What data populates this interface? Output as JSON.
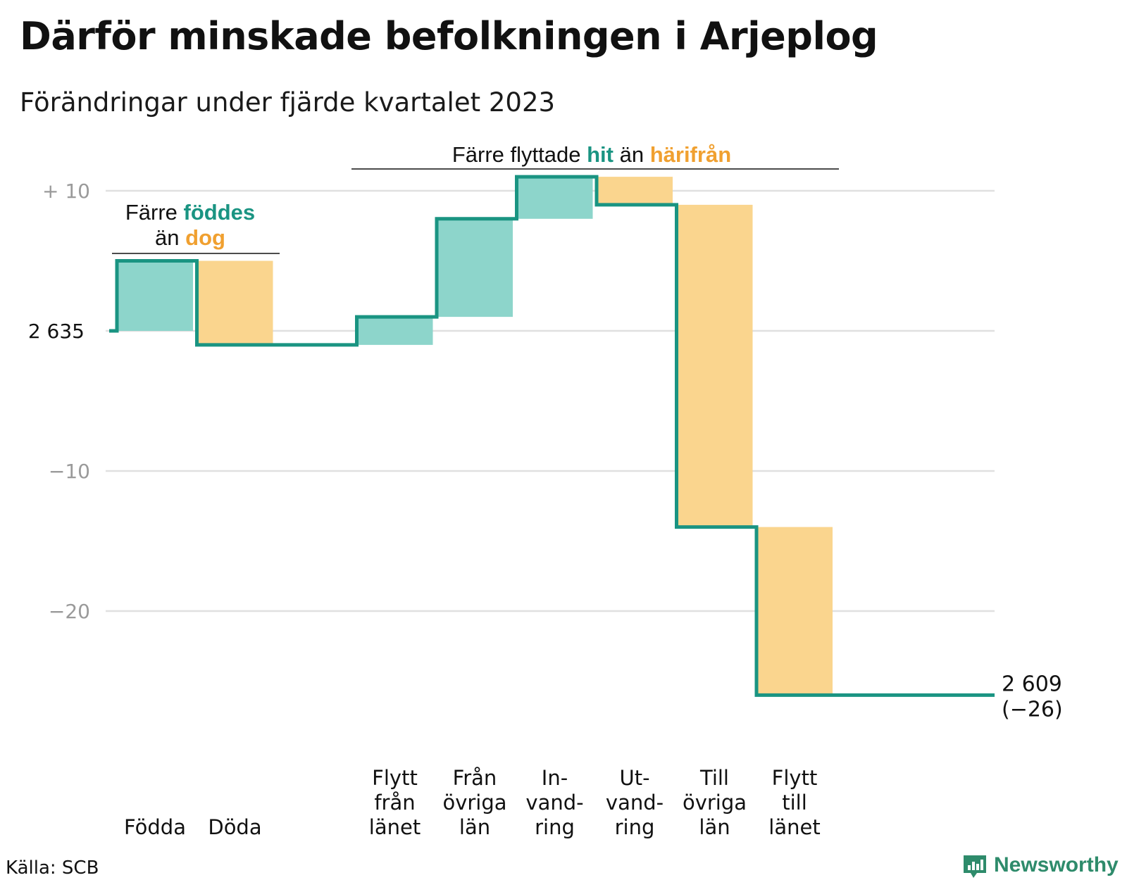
{
  "title": "Därför minskade befolkningen i Arjeplog",
  "subtitle": "Förändringar under fjärde kvartalet 2023",
  "source": "Källa: SCB",
  "brand": "Newsworthy",
  "colors": {
    "positive_fill": "#8dd5cb",
    "negative_fill": "#fad58e",
    "line": "#1a9482",
    "accent_teal": "#1a9482",
    "accent_orange": "#f0a030",
    "grid": "#e0e0e0",
    "tick_label": "#9a9a9a",
    "brand": "#2e8b6b"
  },
  "chart_data": {
    "type": "waterfall",
    "start_value": 2635,
    "end_value": 2609,
    "end_change": "(−26)",
    "start_label": "2 635",
    "end_label": "2 609",
    "ylim": [
      -26,
      10
    ],
    "y_ticks": [
      {
        "value": 10,
        "label": "+  10"
      },
      {
        "value": 0,
        "label": "2  635"
      },
      {
        "value": -10,
        "label": "−10"
      },
      {
        "value": -20,
        "label": "−20"
      }
    ],
    "categories": [
      {
        "lines": [
          "Födda"
        ],
        "change": 5
      },
      {
        "lines": [
          "Döda"
        ],
        "change": -6
      },
      {
        "lines": [
          "Flytt",
          "från",
          "länet"
        ],
        "change": 2
      },
      {
        "lines": [
          "Från",
          "övriga",
          "län"
        ],
        "change": 7
      },
      {
        "lines": [
          "In-",
          "vand-",
          "ring"
        ],
        "change": 3
      },
      {
        "lines": [
          "Ut-",
          "vand-",
          "ring"
        ],
        "change": -2
      },
      {
        "lines": [
          "Till",
          "övriga",
          "län"
        ],
        "change": -23
      },
      {
        "lines": [
          "Flytt",
          "till",
          "länet"
        ],
        "change": -12
      }
    ],
    "annotations": [
      {
        "id": "births",
        "parts": [
          {
            "text": "Färre",
            "style": "plain"
          },
          {
            "text": "föddes",
            "style": "teal"
          },
          {
            "text": "än",
            "style": "plain"
          },
          {
            "text": "dog",
            "style": "orange"
          }
        ]
      },
      {
        "id": "moves",
        "parts": [
          {
            "text": "Färre flyttade",
            "style": "plain"
          },
          {
            "text": "hit",
            "style": "teal"
          },
          {
            "text": "än",
            "style": "plain"
          },
          {
            "text": "härifrån",
            "style": "orange"
          }
        ]
      }
    ]
  }
}
